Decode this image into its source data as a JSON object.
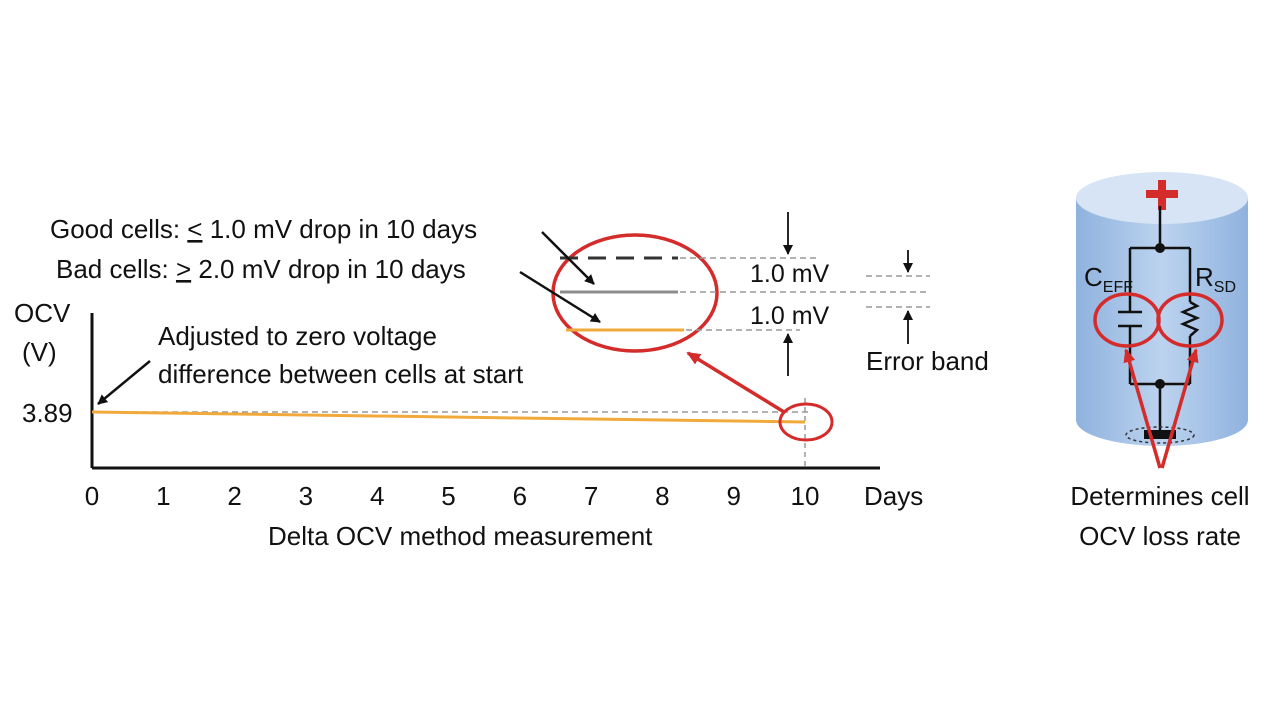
{
  "colors": {
    "accent_red": "#D42B2B",
    "orange_trace": "#F2A93B",
    "gray_trace": "#8C8C8C",
    "dashed_trace": "#333333",
    "cylinder_top": "#CFE0F4",
    "cylinder_body": "#9CBDE6"
  },
  "chart": {
    "ylabel_line1": "OCV",
    "ylabel_line2": "(V)",
    "y_tick": "3.89",
    "x_ticks": [
      "0",
      "1",
      "2",
      "3",
      "4",
      "5",
      "6",
      "7",
      "8",
      "9",
      "10"
    ],
    "x_unit": "Days",
    "caption": "Delta OCV method measurement",
    "annotation_line1": "Adjusted to zero voltage",
    "annotation_line2": "difference between cells at start"
  },
  "chart_data": {
    "type": "line",
    "x": [
      0,
      10
    ],
    "series": [
      {
        "values": [
          3.89,
          3.888
        ]
      }
    ],
    "xlim": [
      0,
      11
    ],
    "ytick": 3.89
  },
  "zoom": {
    "good_label_prefix": "Good cells: ",
    "good_label_symbol": "<",
    "good_label_rest": " 1.0 mV drop in 10 days",
    "bad_label_prefix": "Bad cells: ",
    "bad_label_symbol": ">",
    "bad_label_rest": " 2.0 mV drop in 10 days",
    "delta_upper": "1.0 mV",
    "delta_lower": "1.0 mV",
    "error_band": "Error band"
  },
  "cell": {
    "cap_main": "C",
    "cap_sub": "EFF",
    "res_main": "R",
    "res_sub": "SD",
    "caption_line1": "Determines cell",
    "caption_line2": "OCV loss rate"
  }
}
